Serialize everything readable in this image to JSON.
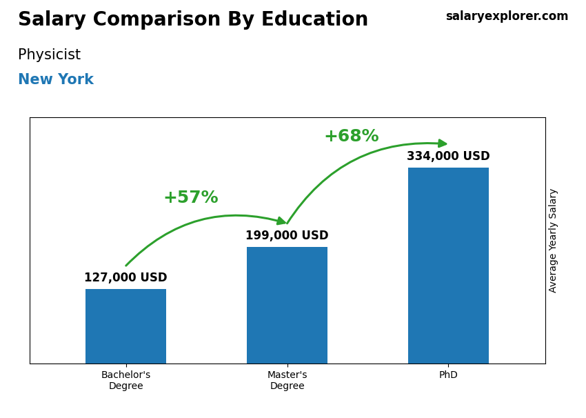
{
  "chart_data": {
    "type": "bar",
    "title": "Salary Comparison By Education",
    "subtitle": "Physicist",
    "ylabel": "Average Yearly Salary",
    "categories": [
      "Bachelor's\nDegree",
      "Master's\nDegree",
      "PhD"
    ],
    "values": [
      127000,
      199000,
      334000
    ],
    "value_labels": [
      "127,000 USD",
      "199,000 USD",
      "334,000 USD"
    ],
    "data_labels": true,
    "ylim": [
      0,
      420000
    ],
    "tick_labels": "x",
    "annotations": [
      {
        "text": "New York"
      },
      {
        "text": "salaryexplorer.com"
      },
      {
        "text": "+57%",
        "from": "Bachelor's\nDegree",
        "to": "Master's\nDegree"
      },
      {
        "text": "+68%",
        "from": "Master's\nDegree",
        "to": "PhD"
      }
    ]
  }
}
